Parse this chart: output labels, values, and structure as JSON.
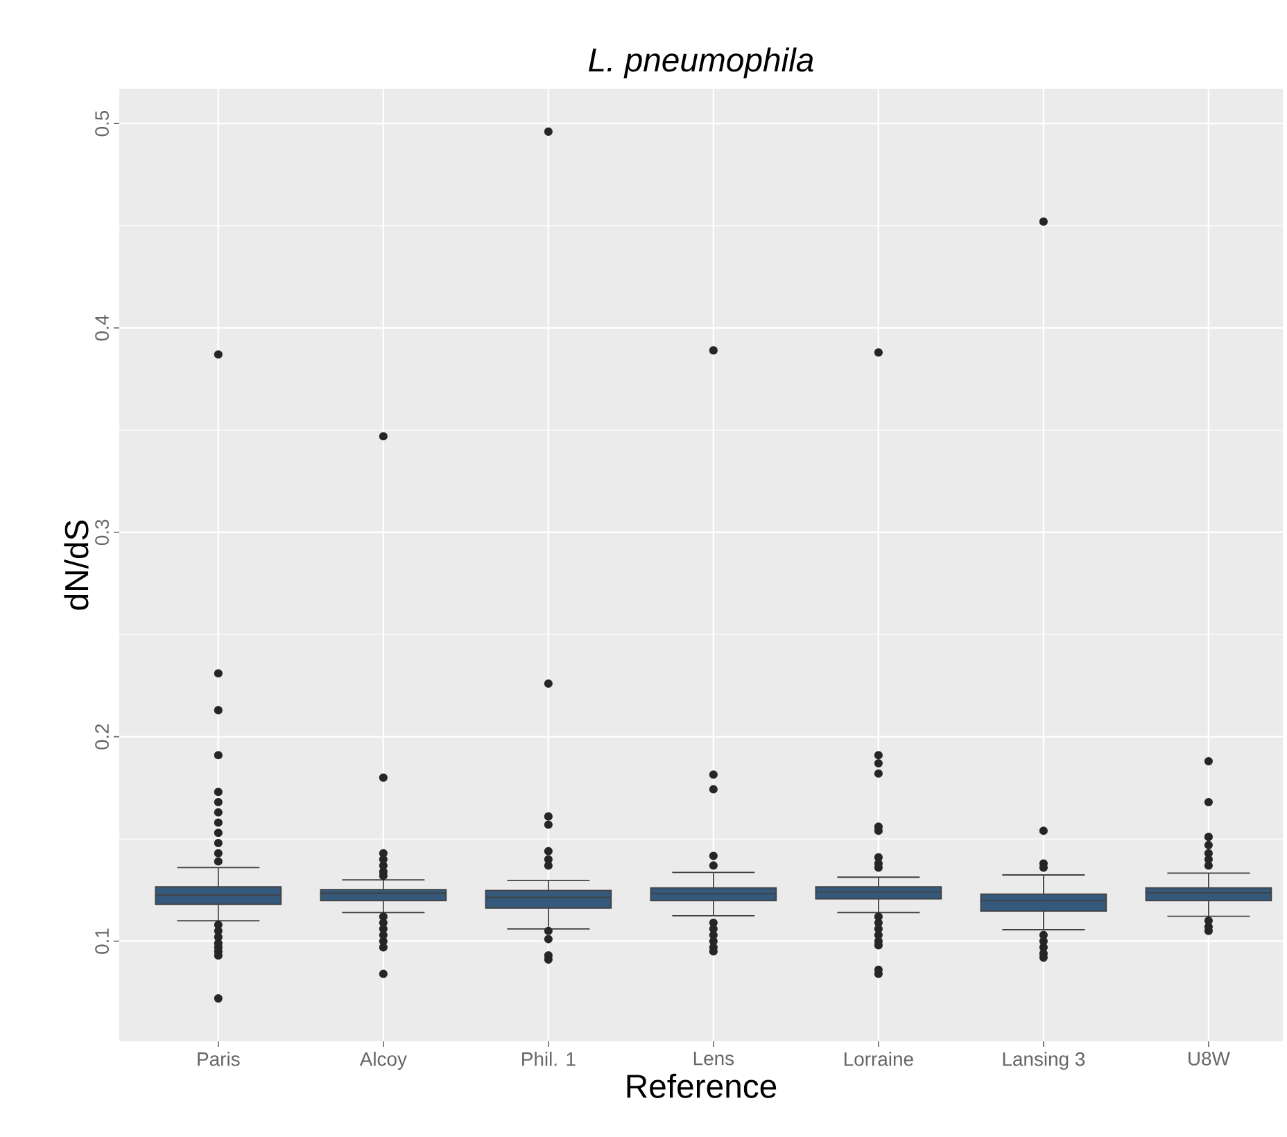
{
  "chart_data": {
    "type": "box",
    "title": "L. pneumophila",
    "xlabel": "Reference",
    "ylabel": "dN/dS",
    "categories": [
      "Paris",
      "Alcoy",
      "Phil. 1",
      "Lens",
      "Lorraine",
      "Lansing 3",
      "U8W"
    ],
    "ylim": [
      0.051,
      0.517
    ],
    "yticks": [
      0.1,
      0.2,
      0.3,
      0.4,
      0.5
    ],
    "grid": true,
    "series": [
      {
        "color": "#35597b",
        "boxes": [
          {
            "low": 0.11,
            "q1": 0.118,
            "median": 0.1225,
            "q3": 0.1266,
            "high": 0.136,
            "outliers": [
              0.387,
              0.231,
              0.213,
              0.191,
              0.173,
              0.168,
              0.163,
              0.158,
              0.153,
              0.148,
              0.143,
              0.139,
              0.108,
              0.105,
              0.102,
              0.099,
              0.097,
              0.095,
              0.093,
              0.072
            ]
          },
          {
            "low": 0.114,
            "q1": 0.1198,
            "median": 0.1235,
            "q3": 0.1252,
            "high": 0.13,
            "outliers": [
              0.347,
              0.18,
              0.143,
              0.14,
              0.137,
              0.134,
              0.132,
              0.112,
              0.109,
              0.106,
              0.103,
              0.1,
              0.097,
              0.084
            ]
          },
          {
            "low": 0.106,
            "q1": 0.1162,
            "median": 0.1214,
            "q3": 0.1248,
            "high": 0.1297,
            "outliers": [
              0.496,
              0.226,
              0.161,
              0.157,
              0.144,
              0.14,
              0.137,
              0.105,
              0.101,
              0.093,
              0.091
            ]
          },
          {
            "low": 0.1124,
            "q1": 0.1198,
            "median": 0.1232,
            "q3": 0.1261,
            "high": 0.1336,
            "outliers": [
              0.389,
              0.1815,
              0.1743,
              0.1417,
              0.137,
              0.109,
              0.106,
              0.103,
              0.1,
              0.097,
              0.095
            ]
          },
          {
            "low": 0.114,
            "q1": 0.1207,
            "median": 0.1241,
            "q3": 0.1266,
            "high": 0.1313,
            "outliers": [
              0.388,
              0.191,
              0.187,
              0.182,
              0.156,
              0.154,
              0.141,
              0.138,
              0.136,
              0.112,
              0.109,
              0.106,
              0.103,
              0.1,
              0.098,
              0.086,
              0.084
            ]
          },
          {
            "low": 0.1056,
            "q1": 0.1147,
            "median": 0.1198,
            "q3": 0.123,
            "high": 0.1324,
            "outliers": [
              0.452,
              0.154,
              0.138,
              0.136,
              0.103,
              0.1,
              0.097,
              0.094,
              0.092
            ]
          },
          {
            "low": 0.1122,
            "q1": 0.1198,
            "median": 0.1236,
            "q3": 0.1261,
            "high": 0.1333,
            "outliers": [
              0.188,
              0.168,
              0.151,
              0.147,
              0.143,
              0.14,
              0.137,
              0.11,
              0.107,
              0.105
            ]
          }
        ]
      }
    ]
  }
}
